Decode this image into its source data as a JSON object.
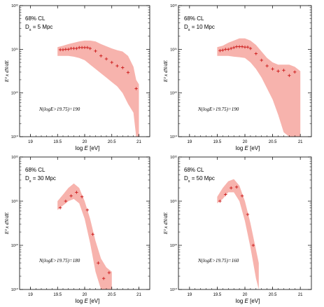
{
  "chart_data": [
    {
      "type": "scatter",
      "cl_label": "68% CL",
      "ds_label": "D",
      "ds_sub": "s",
      "ds_value": " = 5 Mpc",
      "n_label": "N(logE>19.75)=190",
      "xlabel_main": "log ",
      "xlabel_var": "E",
      "xlabel_unit": " [eV]",
      "ylabel": "E³ x dN/dE",
      "xlim": [
        18.8,
        21.2
      ],
      "xticks": [
        "19",
        "19.5",
        "20",
        "20.5",
        "21"
      ],
      "yticks": [
        "10¹⁰",
        "10²⁰",
        "10²¹",
        "10²²"
      ],
      "ylim_decades": [
        0,
        3
      ],
      "band_x": [
        19.5,
        19.6,
        19.7,
        19.8,
        19.9,
        20.0,
        20.1,
        20.2,
        20.3,
        20.4,
        20.5,
        20.6,
        20.7,
        20.8,
        20.9,
        20.95,
        21.0
      ],
      "band_upper": [
        2.05,
        2.08,
        2.12,
        2.15,
        2.18,
        2.2,
        2.2,
        2.18,
        2.12,
        2.07,
        2.02,
        1.98,
        1.95,
        1.85,
        1.6,
        1.3,
        1.2
      ],
      "band_lower": [
        1.85,
        1.85,
        1.85,
        1.83,
        1.8,
        1.75,
        1.65,
        1.55,
        1.45,
        1.35,
        1.25,
        1.15,
        1.0,
        0.75,
        0.55,
        0.0,
        0.0
      ],
      "points_x": [
        19.55,
        19.6,
        19.65,
        19.7,
        19.75,
        19.8,
        19.85,
        19.9,
        19.95,
        20.0,
        20.05,
        20.1,
        20.2,
        20.3,
        20.4,
        20.5,
        20.6,
        20.7,
        20.8,
        20.95
      ],
      "points_y": [
        1.99,
        1.99,
        2.0,
        2.0,
        2.02,
        2.02,
        2.02,
        2.04,
        2.04,
        2.04,
        2.04,
        2.02,
        1.96,
        1.85,
        1.78,
        1.7,
        1.62,
        1.58,
        1.47,
        1.1
      ]
    },
    {
      "type": "scatter",
      "cl_label": "68% CL",
      "ds_label": "D",
      "ds_sub": "s",
      "ds_value": " = 10 Mpc",
      "n_label": "N(logE>19.75)=190",
      "xlabel_main": "log ",
      "xlabel_var": "E",
      "xlabel_unit": " [eV]",
      "ylabel": "E³ x dN/dE",
      "xlim": [
        18.8,
        21.2
      ],
      "xticks": [
        "19",
        "19.5",
        "20",
        "20.5",
        "21"
      ],
      "yticks": [
        "10¹⁰",
        "10²⁰",
        "10²¹",
        "10²²"
      ],
      "ylim_decades": [
        0,
        3
      ],
      "band_x": [
        19.5,
        19.6,
        19.7,
        19.8,
        19.9,
        20.0,
        20.1,
        20.2,
        20.3,
        20.4,
        20.5,
        20.6,
        20.7,
        20.8,
        20.9,
        21.0
      ],
      "band_upper": [
        2.05,
        2.08,
        2.15,
        2.2,
        2.25,
        2.25,
        2.2,
        2.1,
        1.95,
        1.8,
        1.7,
        1.65,
        1.65,
        1.65,
        1.6,
        1.5
      ],
      "band_lower": [
        1.85,
        1.85,
        1.85,
        1.83,
        1.82,
        1.8,
        1.7,
        1.55,
        1.35,
        1.1,
        0.85,
        0.5,
        0.1,
        0.0,
        0.0,
        0.0
      ],
      "points_x": [
        19.55,
        19.6,
        19.65,
        19.7,
        19.75,
        19.8,
        19.85,
        19.9,
        19.95,
        20.0,
        20.05,
        20.1,
        20.2,
        20.3,
        20.4,
        20.5,
        20.6,
        20.7,
        20.8,
        20.9
      ],
      "points_y": [
        1.97,
        1.98,
        2.0,
        2.0,
        2.02,
        2.04,
        2.06,
        2.06,
        2.06,
        2.05,
        2.05,
        2.02,
        1.9,
        1.75,
        1.62,
        1.55,
        1.5,
        1.52,
        1.4,
        1.48
      ]
    },
    {
      "type": "scatter",
      "cl_label": "68% CL",
      "ds_label": "D",
      "ds_sub": "s",
      "ds_value": " = 30 Mpc",
      "n_label": "N(logE>19.75)=180",
      "xlabel_main": "log ",
      "xlabel_var": "E",
      "xlabel_unit": " [eV]",
      "ylabel": "E³ x dN/dE",
      "xlim": [
        18.8,
        21.2
      ],
      "xticks": [
        "19",
        "19.5",
        "20",
        "20.5",
        "21"
      ],
      "yticks": [
        "10¹⁰",
        "10²⁰",
        "10²¹",
        "10²²"
      ],
      "ylim_decades": [
        0,
        3
      ],
      "band_x": [
        19.5,
        19.6,
        19.7,
        19.8,
        19.9,
        20.0,
        20.1,
        20.2,
        20.3,
        20.4,
        20.5
      ],
      "band_upper": [
        2.0,
        2.15,
        2.3,
        2.4,
        2.3,
        2.0,
        1.6,
        1.1,
        0.7,
        0.5,
        0.4
      ],
      "band_lower": [
        1.8,
        1.9,
        2.0,
        2.05,
        1.95,
        1.6,
        1.05,
        0.4,
        0.0,
        0.0,
        0.0
      ],
      "points_x": [
        19.55,
        19.65,
        19.75,
        19.85,
        19.95,
        20.05,
        20.15,
        20.25,
        20.35,
        20.45
      ],
      "points_y": [
        1.85,
        2.0,
        2.12,
        2.2,
        2.1,
        1.8,
        1.25,
        0.6,
        0.25,
        0.38
      ]
    },
    {
      "type": "scatter",
      "cl_label": "68% CL",
      "ds_label": "D",
      "ds_sub": "s",
      "ds_value": " = 50 Mpc",
      "n_label": "N(logE>19.75)=160",
      "xlabel_main": "log ",
      "xlabel_var": "E",
      "xlabel_unit": " [eV]",
      "ylabel": "E³ x dN/dE",
      "xlim": [
        18.8,
        21.2
      ],
      "xticks": [
        "19",
        "19.5",
        "20",
        "20.5",
        "21"
      ],
      "yticks": [
        "10¹⁰",
        "10²⁰",
        "10²¹",
        "10²²"
      ],
      "ylim_decades": [
        0,
        3
      ],
      "band_x": [
        19.5,
        19.6,
        19.7,
        19.8,
        19.9,
        20.0,
        20.1,
        20.2,
        20.25
      ],
      "band_upper": [
        2.1,
        2.3,
        2.45,
        2.5,
        2.35,
        2.0,
        1.5,
        0.9,
        0.6
      ],
      "band_lower": [
        1.95,
        2.05,
        2.2,
        2.2,
        2.0,
        1.55,
        0.95,
        0.25,
        0.0
      ],
      "points_x": [
        19.55,
        19.65,
        19.75,
        19.85,
        19.95,
        20.05,
        20.15
      ],
      "points_y": [
        2.0,
        2.15,
        2.3,
        2.32,
        2.12,
        1.7,
        1.0
      ]
    }
  ]
}
